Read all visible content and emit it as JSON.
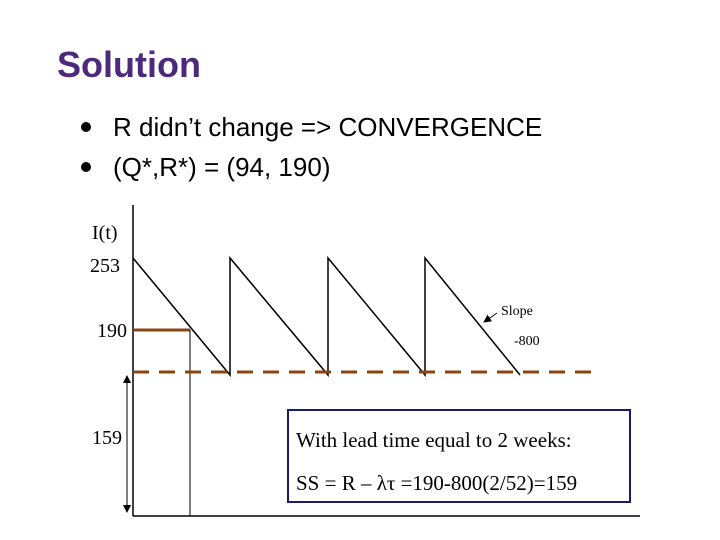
{
  "header": {
    "title": "Solution"
  },
  "bullets": [
    "R didn’t change => CONVERGENCE",
    "(Q*,R*) = (94, 190)"
  ],
  "diagram": {
    "axis_label": "I(t)",
    "levels": [
      "253",
      "190",
      "159"
    ],
    "slope_label": "Slope",
    "slope_value": "-800",
    "note": [
      "With lead time equal to 2 weeks:",
      "SS = R – λτ =190-800(2/52)=159"
    ]
  }
}
